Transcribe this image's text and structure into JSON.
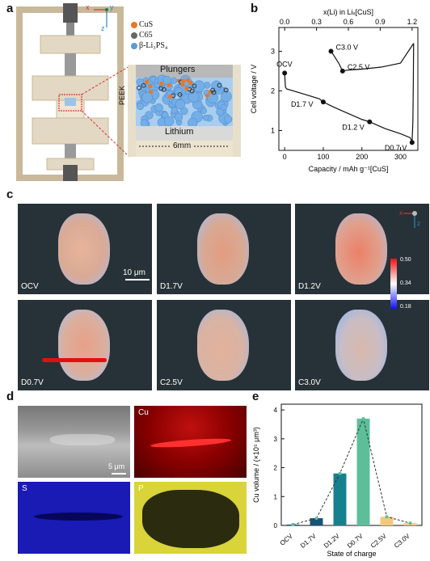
{
  "panel_labels": {
    "a": "a",
    "b": "b",
    "c": "c",
    "d": "d",
    "e": "e"
  },
  "panel_a": {
    "legend": [
      {
        "label": "CuS",
        "color": "#e8782a"
      },
      {
        "label": "C65",
        "color": "#666666"
      },
      {
        "label": "β-Li₃PS₄",
        "color": "#5b9bd5"
      }
    ],
    "axes": {
      "x": "x",
      "y": "y",
      "z": "z"
    },
    "inset": {
      "top": "Plungers",
      "side": "PEEK",
      "bottom": "Lithium",
      "width": "6mm"
    }
  },
  "panel_b": {
    "chart_data": {
      "type": "line",
      "xlabel": "Capacity / mAh g⁻¹[CuS]",
      "ylabel": "Cell voltage / V",
      "top_xlabel": "x(Li) in Liₓ[CuS]",
      "xlim": [
        -15,
        345
      ],
      "ylim": [
        0.5,
        3.6
      ],
      "xticks": [
        0,
        100,
        200,
        300
      ],
      "yticks": [
        1,
        2,
        3
      ],
      "top_ticks": [
        "0.0",
        "0.3",
        "0.6",
        "0.9",
        "1.2"
      ],
      "series": [
        {
          "values_x": [
            0,
            2,
            5,
            40,
            90,
            100,
            125,
            160,
            200,
            220,
            260,
            300,
            325,
            330,
            332,
            333,
            334
          ],
          "values_y": [
            2.45,
            2.1,
            2.05,
            1.95,
            1.8,
            1.72,
            1.6,
            1.45,
            1.28,
            1.22,
            1.05,
            0.92,
            0.82,
            0.72,
            1.2,
            2.0,
            3.2
          ],
          "color": "#111111"
        },
        {
          "values_x": [
            334,
            300,
            250,
            200,
            160,
            150,
            140,
            125,
            120
          ],
          "values_y": [
            3.2,
            2.7,
            2.6,
            2.55,
            2.52,
            2.5,
            2.7,
            2.93,
            3.0
          ],
          "color": "#111111"
        }
      ],
      "points": [
        {
          "label": "OCV",
          "x": 0,
          "y": 2.45
        },
        {
          "label": "D1.7 V",
          "x": 100,
          "y": 1.72
        },
        {
          "label": "D1.2 V",
          "x": 220,
          "y": 1.22
        },
        {
          "label": "D0.7 V",
          "x": 330,
          "y": 0.7
        },
        {
          "label": "C2.5 V",
          "x": 150,
          "y": 2.5
        },
        {
          "label": "C3.0 V",
          "x": 120,
          "y": 3.0
        }
      ]
    }
  },
  "panel_c": {
    "tiles": [
      {
        "label": "OCV"
      },
      {
        "label": "D1.7V"
      },
      {
        "label": "D1.2V"
      },
      {
        "label": "D0.7V"
      },
      {
        "label": "C2.5V"
      },
      {
        "label": "C3.0V"
      }
    ],
    "scalebar": "10 μm",
    "colorbar": {
      "max": "0.50",
      "mid": "0.34",
      "min": "0.18"
    },
    "axes": {
      "x": "x",
      "z": "z"
    }
  },
  "panel_d": {
    "tiles": [
      {
        "label": ""
      },
      {
        "label": "Cu"
      },
      {
        "label": "S"
      },
      {
        "label": "P"
      }
    ],
    "scalebar": "5 μm"
  },
  "panel_e": {
    "chart_data": {
      "type": "bar",
      "categories": [
        "OCV",
        "D1.7V",
        "D1.2V",
        "D0.7V",
        "C2.5V",
        "C3.0V"
      ],
      "values": [
        0.03,
        0.25,
        1.8,
        3.7,
        0.3,
        0.08
      ],
      "colors": [
        "#1a5276",
        "#1a5276",
        "#17808f",
        "#5cbf9a",
        "#f5c97b",
        "#f5c97b"
      ],
      "xlabel": "State of charge",
      "ylabel": "Cu volume / (×10⁵ μm³)",
      "ylim": [
        0,
        4.2
      ],
      "yticks": [
        0,
        1,
        2,
        3,
        4
      ]
    }
  }
}
